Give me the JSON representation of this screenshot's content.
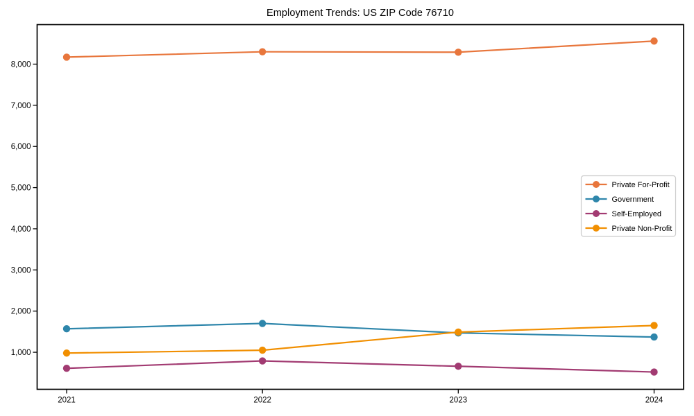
{
  "figure": {
    "title": "Employment Trends: US ZIP Code 76710"
  },
  "chart_data": {
    "type": "line",
    "title": "Employment Trends: US ZIP Code 76710",
    "categories": [
      "2021",
      "2022",
      "2023",
      "2024"
    ],
    "series": [
      {
        "name": "Private For-Profit",
        "color": "#E8763C",
        "values": [
          8170,
          8300,
          8290,
          8560
        ]
      },
      {
        "name": "Government",
        "color": "#2E86AB",
        "values": [
          1570,
          1700,
          1470,
          1370
        ]
      },
      {
        "name": "Self-Employed",
        "color": "#A23B72",
        "values": [
          610,
          790,
          660,
          520
        ]
      },
      {
        "name": "Private Non-Profit",
        "color": "#F18F01",
        "values": [
          980,
          1050,
          1490,
          1650
        ]
      }
    ],
    "xlabel": "",
    "ylabel": "",
    "ylim": [
      100,
      8960
    ],
    "y_ticks": [
      1000,
      2000,
      3000,
      4000,
      5000,
      6000,
      7000,
      8000
    ],
    "y_tick_labels": [
      "1,000",
      "2,000",
      "3,000",
      "4,000",
      "5,000",
      "6,000",
      "7,000",
      "8,000"
    ],
    "grid": false,
    "marker": "circle",
    "axis_color": "#000000",
    "legend": {
      "position": "middle-right",
      "frame": true,
      "entries": [
        "Private For-Profit",
        "Government",
        "Self-Employed",
        "Private Non-Profit"
      ]
    }
  }
}
